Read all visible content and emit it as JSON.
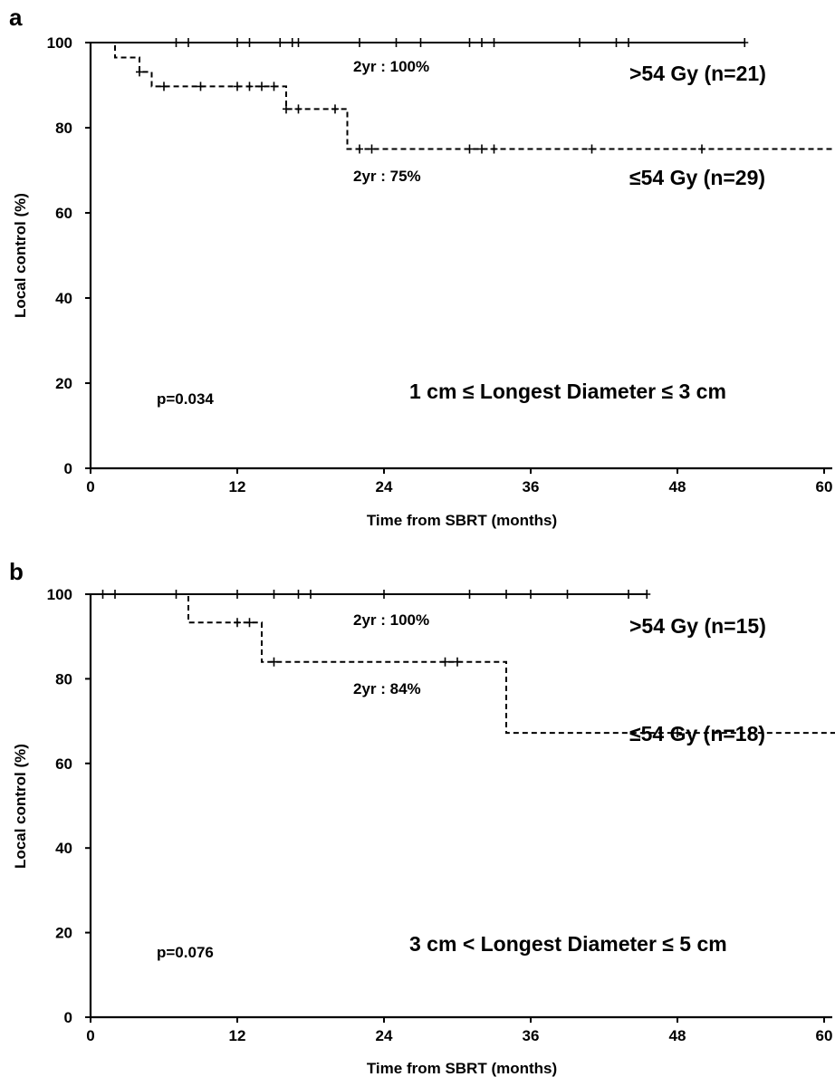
{
  "chart_data": [
    {
      "type": "line",
      "panel": "a",
      "xlabel": "Time from SBRT (months)",
      "ylabel": "Local control (%)",
      "xlim": [
        0,
        61
      ],
      "ylim": [
        0,
        100
      ],
      "xticks": [
        0,
        12,
        24,
        36,
        48,
        60
      ],
      "yticks": [
        0,
        20,
        40,
        60,
        80,
        100
      ],
      "grid": false,
      "series": [
        {
          "name": ">54 Gy (n=21)",
          "style": "solid",
          "steps": [
            [
              0,
              100
            ],
            [
              53.5,
              100
            ]
          ],
          "censored": [
            7,
            8,
            12,
            13,
            15.5,
            16.5,
            17,
            22,
            25,
            27,
            31,
            32,
            33,
            40,
            43,
            44,
            53.5
          ]
        },
        {
          "name": "≤54 Gy (n=29)",
          "style": "dashed",
          "steps": [
            [
              0,
              100
            ],
            [
              2,
              96.5
            ],
            [
              4,
              93.1
            ],
            [
              5,
              89.7
            ],
            [
              16,
              84.4
            ],
            [
              21,
              75
            ],
            [
              61,
              75
            ]
          ],
          "censored": [
            4,
            6,
            9,
            12,
            13,
            14,
            15,
            16,
            17,
            20,
            22,
            23,
            31,
            32,
            33,
            41,
            50
          ]
        }
      ],
      "annotations": {
        "upper_rate": "2yr : 100%",
        "lower_rate": "2yr : 75%",
        "upper_group": ">54 Gy (n=21)",
        "lower_group": "≤54 Gy (n=29)",
        "p_value": "p=0.034",
        "subset": "1 cm ≤ Longest Diameter ≤ 3 cm"
      }
    },
    {
      "type": "line",
      "panel": "b",
      "xlabel": "Time from SBRT (months)",
      "ylabel": "Local control (%)",
      "xlim": [
        0,
        61
      ],
      "ylim": [
        0,
        100
      ],
      "xticks": [
        0,
        12,
        24,
        36,
        48,
        60
      ],
      "yticks": [
        0,
        20,
        40,
        60,
        80,
        100
      ],
      "grid": false,
      "series": [
        {
          "name": ">54 Gy (n=15)",
          "style": "solid",
          "steps": [
            [
              0,
              100
            ],
            [
              45.5,
              100
            ]
          ],
          "censored": [
            1,
            2,
            7,
            12,
            15,
            17,
            18,
            24,
            31,
            34,
            36,
            39,
            44,
            45.5
          ]
        },
        {
          "name": "≤54 Gy (n=18)",
          "style": "dashed",
          "steps": [
            [
              0,
              100
            ],
            [
              8,
              93.3
            ],
            [
              14,
              84
            ],
            [
              34,
              67.2
            ],
            [
              61,
              67.2
            ]
          ],
          "censored": [
            12,
            13,
            15,
            29,
            30,
            48
          ]
        }
      ],
      "annotations": {
        "upper_rate": "2yr : 100%",
        "lower_rate": "2yr : 84%",
        "upper_group": ">54 Gy (n=15)",
        "lower_group": "≤54 Gy (n=18)",
        "p_value": "p=0.076",
        "subset": "3 cm < Longest Diameter ≤ 5 cm"
      }
    }
  ]
}
